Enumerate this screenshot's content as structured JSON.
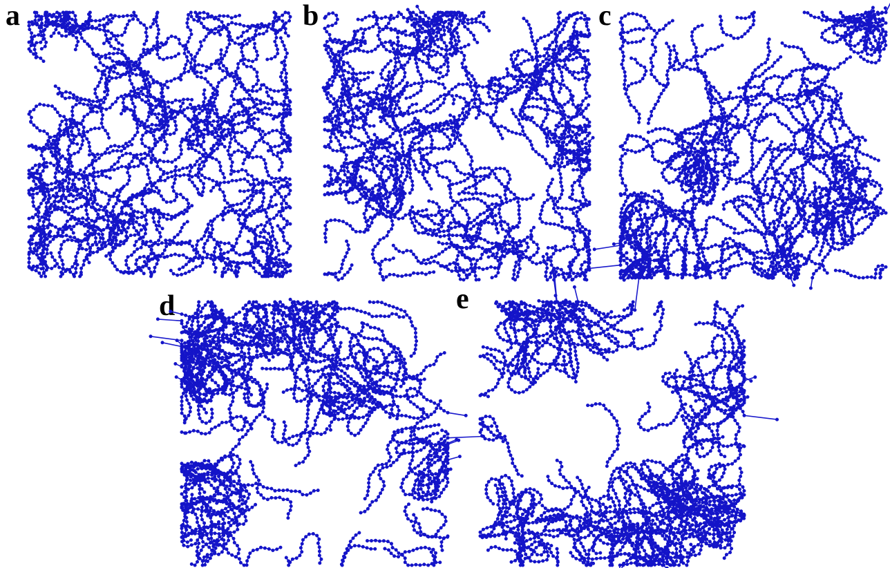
{
  "panels": [
    {
      "label": "a"
    },
    {
      "label": "b"
    },
    {
      "label": "c"
    },
    {
      "label": "d"
    },
    {
      "label": "e"
    }
  ]
}
